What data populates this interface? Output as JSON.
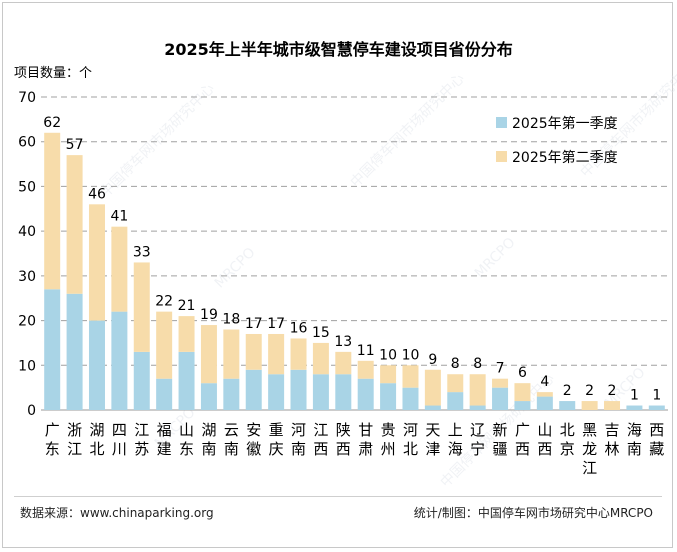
{
  "chart_data": {
    "type": "bar",
    "stacked": true,
    "title": "2025年上半年城市级智慧停车建设项目省份分布",
    "ylabel": "项目数量：个",
    "ylim": [
      0,
      70
    ],
    "yticks": [
      0,
      10,
      20,
      30,
      40,
      50,
      60,
      70
    ],
    "grid": true,
    "legend_position": "top-right",
    "categories": [
      "广东",
      "浙江",
      "湖北",
      "四川",
      "江苏",
      "福建",
      "山东",
      "湖南",
      "云南",
      "安徽",
      "重庆",
      "河南",
      "江西",
      "陕西",
      "甘肃",
      "贵州",
      "河北",
      "天津",
      "上海",
      "辽宁",
      "新疆",
      "广西",
      "山西",
      "北京",
      "黑龙江",
      "吉林",
      "海南",
      "西藏"
    ],
    "totals": [
      62,
      57,
      46,
      41,
      33,
      22,
      21,
      19,
      18,
      17,
      17,
      16,
      15,
      13,
      11,
      10,
      10,
      9,
      8,
      8,
      7,
      6,
      4,
      2,
      2,
      2,
      1,
      1
    ],
    "series": [
      {
        "name": "2025年第一季度",
        "color": "#a9d4e6",
        "values": [
          27,
          26,
          20,
          22,
          13,
          7,
          13,
          6,
          7,
          9,
          8,
          9,
          8,
          8,
          7,
          6,
          5,
          1,
          4,
          1,
          5,
          2,
          3,
          2,
          0,
          0,
          1,
          1
        ]
      },
      {
        "name": "2025年第二季度",
        "color": "#f7dcaa",
        "values": [
          35,
          31,
          26,
          19,
          20,
          15,
          8,
          13,
          11,
          8,
          9,
          7,
          7,
          5,
          4,
          4,
          5,
          8,
          4,
          7,
          2,
          4,
          1,
          0,
          2,
          2,
          0,
          0
        ]
      }
    ]
  },
  "footer": {
    "source": "数据来源：www.chinaparking.org",
    "credit": "统计/制图：中国停车网市场研究中心MRCPO"
  },
  "watermark": {
    "text": "中国停车网市场研究中心",
    "code": "MRCPO"
  }
}
